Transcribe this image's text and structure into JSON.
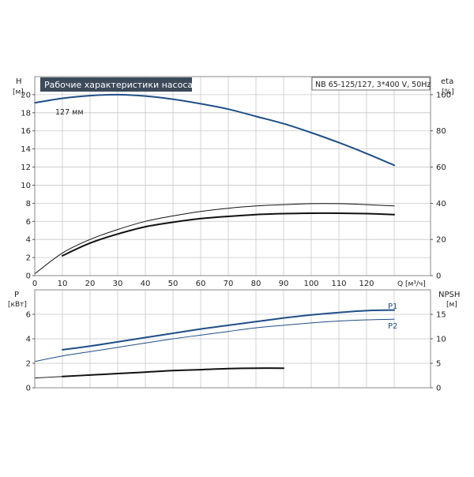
{
  "header": {
    "title": "Рабочие характеристики насоса",
    "model": "NB 65-125/127, 3*400 V, 50Hz"
  },
  "colors": {
    "blue": "#1f4e88",
    "black": "#111111",
    "title_bg": "#3c4a5a",
    "grid": "#c8c8c8"
  },
  "chart_data": [
    {
      "type": "line",
      "name": "head-efficiency",
      "xlabel": "Q [м³/ч]",
      "ylabel_left": "H",
      "ylabel_left_unit": "[м]",
      "ylabel_right": "eta",
      "ylabel_right_unit": "[%]",
      "xlim": [
        0,
        130
      ],
      "ylim_left": [
        0,
        22
      ],
      "ylim_right": [
        0,
        110
      ],
      "x_ticks": [
        0,
        10,
        20,
        30,
        40,
        50,
        60,
        70,
        80,
        90,
        100,
        110,
        120
      ],
      "y_ticks_left": [
        0,
        2,
        4,
        6,
        8,
        10,
        12,
        14,
        16,
        18,
        20
      ],
      "y_ticks_right": [
        0,
        20,
        40,
        60,
        80,
        100
      ],
      "grid": true,
      "annotations": [
        {
          "text": "127 мм"
        }
      ],
      "series": [
        {
          "axis": "left",
          "color": "#1f4e88",
          "width": 2,
          "x": [
            0,
            10,
            20,
            30,
            40,
            50,
            60,
            70,
            80,
            90,
            100,
            110,
            120,
            130
          ],
          "y": [
            19.1,
            19.6,
            19.9,
            20.0,
            19.85,
            19.5,
            19.0,
            18.4,
            17.6,
            16.8,
            15.8,
            14.7,
            13.5,
            12.2
          ]
        },
        {
          "axis": "left",
          "color": "#111111",
          "width": 1,
          "x": [
            0,
            10,
            20,
            30,
            40,
            50,
            60,
            70,
            80,
            90,
            100,
            110,
            120,
            130
          ],
          "y": [
            0.2,
            2.5,
            4.0,
            5.1,
            6.0,
            6.6,
            7.1,
            7.45,
            7.7,
            7.85,
            7.95,
            7.95,
            7.85,
            7.7
          ]
        },
        {
          "axis": "left",
          "color": "#111111",
          "width": 2,
          "x": [
            10,
            20,
            30,
            40,
            50,
            60,
            70,
            80,
            90,
            100,
            110,
            120,
            130
          ],
          "y": [
            2.2,
            3.6,
            4.6,
            5.4,
            5.9,
            6.3,
            6.55,
            6.75,
            6.85,
            6.9,
            6.9,
            6.85,
            6.75
          ]
        }
      ]
    },
    {
      "type": "line",
      "name": "power-npsh",
      "xlabel": "Q [м³/ч]",
      "ylabel_left": "P",
      "ylabel_left_unit": "[кВт]",
      "ylabel_right": "NPSH",
      "ylabel_right_unit": "[м]",
      "xlim": [
        0,
        130
      ],
      "ylim_left": [
        0,
        8
      ],
      "ylim_right": [
        0,
        20
      ],
      "y_ticks_left": [
        0,
        2,
        4,
        6
      ],
      "y_ticks_right": [
        0,
        5,
        10,
        15
      ],
      "grid": true,
      "series": [
        {
          "name": "P1",
          "axis": "left",
          "color": "#1f4e88",
          "width": 2,
          "x": [
            10,
            20,
            30,
            40,
            50,
            60,
            70,
            80,
            90,
            100,
            110,
            120,
            130
          ],
          "y": [
            3.1,
            3.4,
            3.75,
            4.1,
            4.45,
            4.8,
            5.1,
            5.4,
            5.7,
            5.95,
            6.15,
            6.3,
            6.35
          ]
        },
        {
          "name": "P2",
          "axis": "left",
          "color": "#1f4e88",
          "width": 1,
          "x": [
            0,
            10,
            20,
            30,
            40,
            50,
            60,
            70,
            80,
            90,
            100,
            110,
            120,
            130
          ],
          "y": [
            2.15,
            2.6,
            2.95,
            3.3,
            3.65,
            4.0,
            4.3,
            4.6,
            4.9,
            5.1,
            5.3,
            5.45,
            5.55,
            5.6
          ]
        },
        {
          "axis": "right",
          "color": "#111111",
          "width": 1,
          "x": [
            0,
            10
          ],
          "y": [
            2.0,
            2.3
          ]
        },
        {
          "axis": "right",
          "color": "#111111",
          "width": 2,
          "x": [
            10,
            20,
            30,
            40,
            50,
            60,
            70,
            80,
            90
          ],
          "y": [
            2.3,
            2.6,
            2.9,
            3.2,
            3.5,
            3.7,
            3.9,
            4.0,
            4.0
          ]
        }
      ]
    }
  ]
}
